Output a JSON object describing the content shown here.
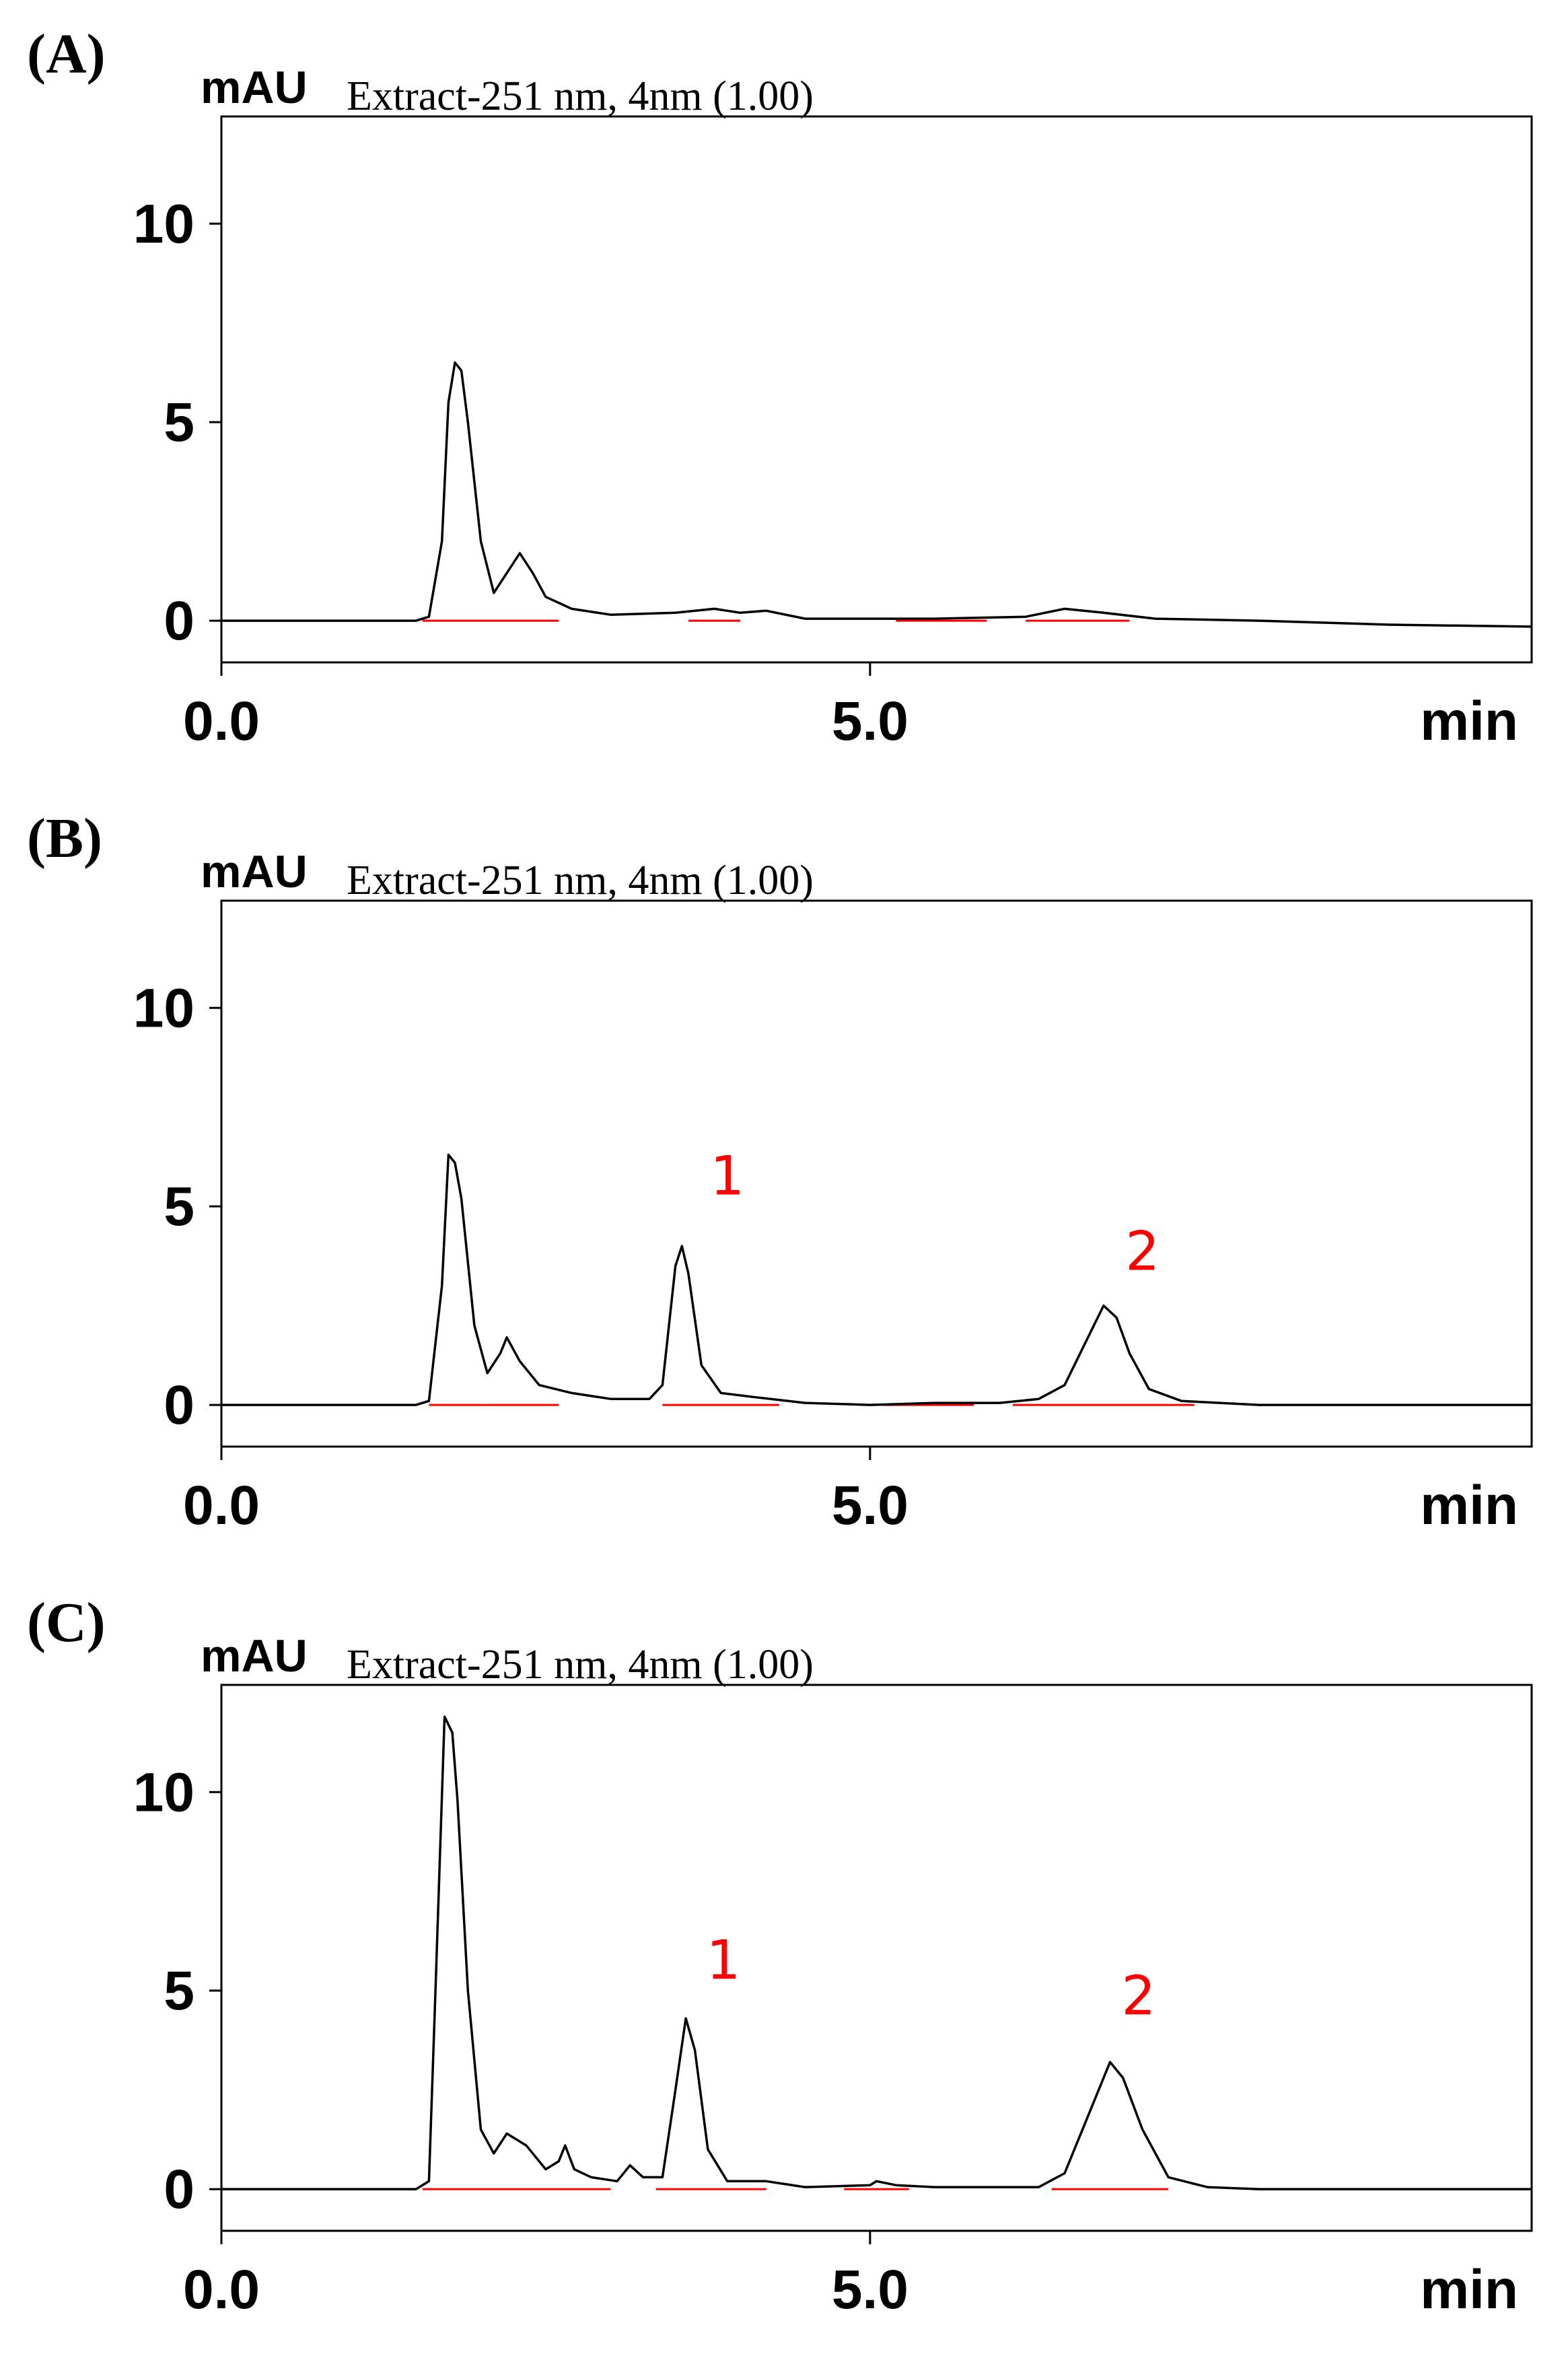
{
  "chart_data": [
    {
      "type": "line",
      "panel": "(A)",
      "y_label": "mAU",
      "title": "Extract-251 nm, 4nm (1.00)",
      "x_label": "min",
      "color": "#000000",
      "baseline_color": "#ff0000",
      "xlim": [
        0,
        10.1
      ],
      "ylim": [
        -1.05,
        12.7
      ],
      "xticks": [
        {
          "value": 0,
          "label": "0.0"
        },
        {
          "value": 5,
          "label": "5.0"
        }
      ],
      "yticks": [
        0,
        5,
        10
      ],
      "x": [
        0,
        1.5,
        1.6,
        1.7,
        1.75,
        1.8,
        1.85,
        1.9,
        2.0,
        2.1,
        2.2,
        2.3,
        2.4,
        2.5,
        2.7,
        3.0,
        3.5,
        3.8,
        4.0,
        4.2,
        4.5,
        5,
        5.5,
        6.2,
        6.5,
        6.8,
        7.2,
        8,
        9,
        10.1
      ],
      "values": [
        0,
        0,
        0.1,
        2,
        5.5,
        6.5,
        6.3,
        5,
        2,
        0.7,
        1.2,
        1.7,
        1.2,
        0.6,
        0.3,
        0.15,
        0.2,
        0.3,
        0.2,
        0.25,
        0.05,
        0.05,
        0.05,
        0.1,
        0.3,
        0.2,
        0.05,
        0,
        -0.1,
        -0.15
      ],
      "baselines": [
        [
          1.55,
          2.05
        ],
        [
          2.05,
          2.6
        ],
        [
          3.6,
          4.0
        ],
        [
          5.2,
          5.9
        ],
        [
          6.2,
          7.0
        ]
      ],
      "annotations": []
    },
    {
      "type": "line",
      "panel": "(B)",
      "y_label": "mAU",
      "title": "Extract-251 nm, 4nm (1.00)",
      "x_label": "min",
      "color": "#000000",
      "baseline_color": "#ff0000",
      "xlim": [
        0,
        10.1
      ],
      "ylim": [
        -1.05,
        12.7
      ],
      "xticks": [
        {
          "value": 0,
          "label": "0.0"
        },
        {
          "value": 5,
          "label": "5.0"
        }
      ],
      "yticks": [
        0,
        5,
        10
      ],
      "x": [
        0,
        1.5,
        1.6,
        1.7,
        1.75,
        1.8,
        1.85,
        1.95,
        2.05,
        2.15,
        2.2,
        2.3,
        2.45,
        2.7,
        3.0,
        3.3,
        3.4,
        3.5,
        3.55,
        3.6,
        3.7,
        3.85,
        4.1,
        4.5,
        5,
        5.5,
        6,
        6.3,
        6.5,
        6.65,
        6.8,
        6.9,
        7.0,
        7.15,
        7.4,
        8,
        10.1
      ],
      "values": [
        0,
        0,
        0.1,
        3,
        6.3,
        6.1,
        5.2,
        2,
        0.8,
        1.3,
        1.7,
        1.1,
        0.5,
        0.3,
        0.15,
        0.15,
        0.5,
        3.5,
        4.0,
        3.3,
        1,
        0.3,
        0.2,
        0.05,
        0,
        0.05,
        0.05,
        0.15,
        0.5,
        1.5,
        2.5,
        2.2,
        1.3,
        0.4,
        0.1,
        0,
        0
      ],
      "baselines": [
        [
          1.6,
          2.05
        ],
        [
          2.05,
          2.6
        ],
        [
          3.4,
          4.3
        ],
        [
          5.1,
          5.8
        ],
        [
          6.1,
          7.5
        ]
      ],
      "annotations": [
        {
          "text": "1",
          "x": 3.9,
          "y": 5.3
        },
        {
          "text": "2",
          "x": 7.1,
          "y": 3.4
        }
      ]
    },
    {
      "type": "line",
      "panel": "(C)",
      "y_label": "mAU",
      "title": "Extract-251 nm, 4nm (1.00)",
      "x_label": "min",
      "color": "#000000",
      "baseline_color": "#ff0000",
      "xlim": [
        0,
        10.1
      ],
      "ylim": [
        -1.05,
        12.7
      ],
      "xticks": [
        {
          "value": 0,
          "label": "0.0"
        },
        {
          "value": 5,
          "label": "5.0"
        }
      ],
      "yticks": [
        0,
        5,
        10
      ],
      "x": [
        0,
        1.5,
        1.6,
        1.65,
        1.72,
        1.78,
        1.82,
        1.9,
        2.0,
        2.1,
        2.2,
        2.35,
        2.5,
        2.6,
        2.65,
        2.72,
        2.85,
        3.05,
        3.15,
        3.25,
        3.4,
        3.5,
        3.58,
        3.65,
        3.75,
        3.9,
        4.2,
        4.5,
        5,
        5.05,
        5.2,
        5.5,
        6.3,
        6.5,
        6.7,
        6.85,
        6.95,
        7.1,
        7.3,
        7.6,
        8,
        10.1
      ],
      "values": [
        0,
        0,
        0.2,
        5,
        11.9,
        11.5,
        9.8,
        5,
        1.5,
        0.9,
        1.4,
        1.1,
        0.5,
        0.7,
        1.1,
        0.5,
        0.3,
        0.2,
        0.6,
        0.3,
        0.3,
        2.5,
        4.3,
        3.5,
        1.0,
        0.2,
        0.2,
        0.05,
        0.1,
        0.2,
        0.1,
        0.05,
        0.05,
        0.4,
        2,
        3.2,
        2.8,
        1.5,
        0.3,
        0.05,
        0,
        0
      ],
      "baselines": [
        [
          1.55,
          2.05
        ],
        [
          2.05,
          2.6
        ],
        [
          2.6,
          3.0
        ],
        [
          3.35,
          4.2
        ],
        [
          4.8,
          5.3
        ],
        [
          6.4,
          7.3
        ]
      ],
      "annotations": [
        {
          "text": "1",
          "x": 3.87,
          "y": 5.3
        },
        {
          "text": "2",
          "x": 7.07,
          "y": 4.4
        }
      ]
    }
  ]
}
